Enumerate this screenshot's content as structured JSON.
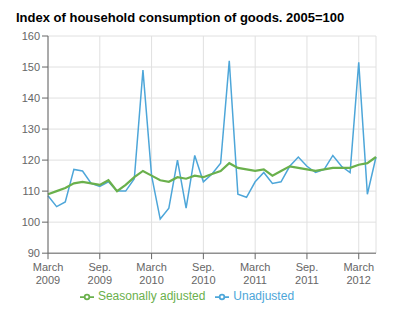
{
  "chart_data": {
    "type": "line",
    "title": "Index of household consumption of goods. 2005=100",
    "categories": [
      "March\n2009",
      null,
      null,
      null,
      null,
      null,
      "Sep.\n2009",
      null,
      null,
      null,
      null,
      null,
      "March\n2010",
      null,
      null,
      null,
      null,
      null,
      "Sep.\n2010",
      null,
      null,
      null,
      null,
      null,
      "March\n2011",
      null,
      null,
      null,
      null,
      null,
      "Sep.\n2011",
      null,
      null,
      null,
      null,
      null,
      "March\n2012",
      null,
      null
    ],
    "series": [
      {
        "name": "Unadjusted",
        "color": "#4da6d9",
        "values": [
          108.5,
          105.0,
          106.5,
          117.0,
          116.5,
          112.5,
          111.5,
          113.0,
          110.0,
          110.0,
          114.0,
          149.0,
          115.0,
          101.0,
          104.5,
          120.0,
          104.5,
          121.5,
          113.0,
          115.5,
          119.0,
          152.0,
          109.0,
          108.0,
          113.0,
          116.0,
          112.5,
          113.0,
          118.0,
          121.0,
          118.0,
          116.0,
          117.0,
          121.5,
          118.0,
          116.0,
          151.5,
          109.0,
          121.0
        ]
      },
      {
        "name": "Seasonally adjusted",
        "color": "#6ab04c",
        "values": [
          109.0,
          110.0,
          111.0,
          112.5,
          113.0,
          112.5,
          112.0,
          113.5,
          110.0,
          112.0,
          114.5,
          116.5,
          115.0,
          113.5,
          113.0,
          114.5,
          114.0,
          115.0,
          114.5,
          115.5,
          116.5,
          119.0,
          117.5,
          117.0,
          116.5,
          117.0,
          115.0,
          116.5,
          118.0,
          117.5,
          117.0,
          116.5,
          117.0,
          117.5,
          117.5,
          117.5,
          118.5,
          119.0,
          121.0
        ]
      }
    ],
    "ylim": [
      90,
      160
    ],
    "yticks": [
      90,
      100,
      110,
      120,
      130,
      140,
      150,
      160
    ],
    "grid": true,
    "legend": "bottom"
  }
}
